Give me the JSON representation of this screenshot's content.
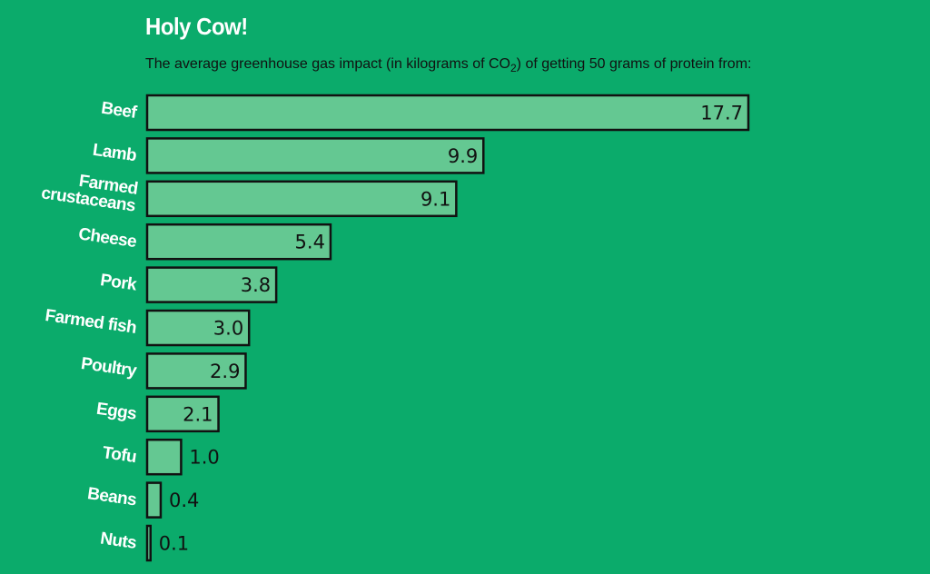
{
  "colors": {
    "background": "#0bab6b",
    "bar_fill": "#64c892",
    "bar_stroke": "#111111",
    "title": "#ffffff",
    "category_label": "#ffffff",
    "value_label": "#111111"
  },
  "header": {
    "title": "Holy Cow!",
    "subtitle_before": "The average greenhouse gas impact (in kilograms of CO",
    "subtitle_sub": "2",
    "subtitle_after": ") of getting 50 grams of protein from:"
  },
  "chart_data": {
    "type": "bar",
    "orientation": "horizontal",
    "title": "Holy Cow!",
    "subtitle": "The average greenhouse gas impact (in kilograms of CO2) of getting 50 grams of protein from:",
    "xlabel": "",
    "ylabel": "",
    "xlim": [
      0,
      17.7
    ],
    "grid": false,
    "legend": "none",
    "categories": [
      [
        "Beef"
      ],
      [
        "Lamb"
      ],
      [
        "Farmed",
        "crustaceans"
      ],
      [
        "Cheese"
      ],
      [
        "Pork"
      ],
      [
        "Farmed fish"
      ],
      [
        "Poultry"
      ],
      [
        "Eggs"
      ],
      [
        "Tofu"
      ],
      [
        "Beans"
      ],
      [
        "Nuts"
      ]
    ],
    "values": [
      17.7,
      9.9,
      9.1,
      5.4,
      3.8,
      3.0,
      2.9,
      2.1,
      1.0,
      0.4,
      0.1
    ],
    "value_labels": [
      "17.7",
      "9.9",
      "9.1",
      "5.4",
      "3.8",
      "3.0",
      "2.9",
      "2.1",
      "1.0",
      "0.4",
      "0.1"
    ]
  }
}
